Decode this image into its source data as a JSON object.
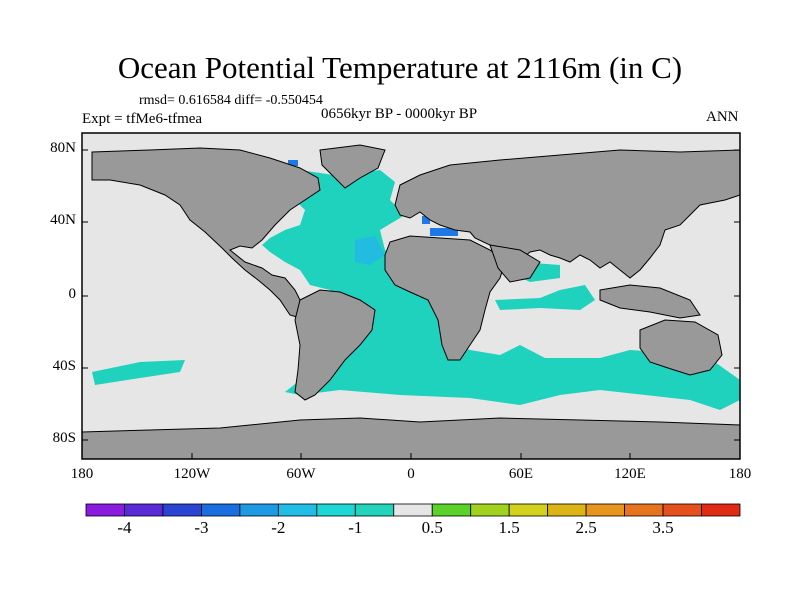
{
  "title": "Ocean Potential Temperature at 2116m (in C)",
  "stats": "rmsd= 0.616584 diff= -0.550454",
  "experiment": "Expt = tfMe6-tfmea",
  "period": "0656kyr BP - 0000kyr BP",
  "season": "ANN",
  "y_axis_labels": [
    "80N",
    "40N",
    "0",
    "40S",
    "80S"
  ],
  "x_axis_labels": [
    "180",
    "120W",
    "60W",
    "0",
    "60E",
    "120E",
    "180"
  ],
  "colorbar_labels": [
    "-4",
    "-3",
    "-2",
    "-1",
    "0.5",
    "1.5",
    "2.5",
    "3.5"
  ],
  "colorbar_colors": [
    "#8a1ce0",
    "#5a2ad8",
    "#2a45d4",
    "#1a6ee0",
    "#1e9ae4",
    "#20bde6",
    "#1ed6d6",
    "#22d4bc",
    "#e6e6e6",
    "#5ad22a",
    "#a0d21e",
    "#d2d21e",
    "#dcb414",
    "#e6961e",
    "#e6731e",
    "#e6501e",
    "#e02a14"
  ],
  "colors": {
    "land": "#999999",
    "ocean_neutral": "#e6e6e6",
    "anomaly_minus1": "#1ed2be",
    "anomaly_minus2": "#22bce0",
    "anomaly_minus3": "#1e78e6",
    "anomaly_plus2": "#c8d21e"
  }
}
